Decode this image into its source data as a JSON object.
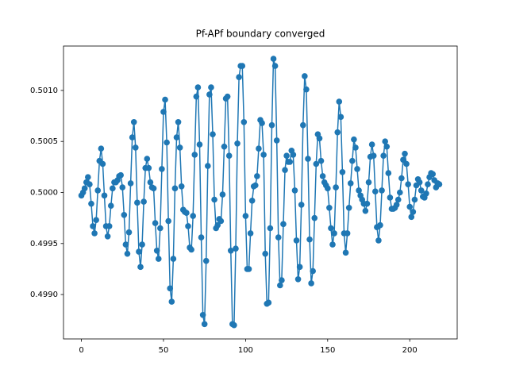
{
  "chart_data": {
    "type": "line",
    "title": "Pf-APf boundary converged",
    "x": [
      0,
      1,
      2,
      3,
      4,
      5,
      6,
      7,
      8,
      9,
      10,
      11,
      12,
      13,
      14,
      15,
      16,
      17,
      18,
      19,
      20,
      21,
      22,
      23,
      24,
      25,
      26,
      27,
      28,
      29,
      30,
      31,
      32,
      33,
      34,
      35,
      36,
      37,
      38,
      39,
      40,
      41,
      42,
      43,
      44,
      45,
      46,
      47,
      48,
      49,
      50,
      51,
      52,
      53,
      54,
      55,
      56,
      57,
      58,
      59,
      60,
      61,
      62,
      63,
      64,
      65,
      66,
      67,
      68,
      69,
      70,
      71,
      72,
      73,
      74,
      75,
      76,
      77,
      78,
      79,
      80,
      81,
      82,
      83,
      84,
      85,
      86,
      87,
      88,
      89,
      90,
      91,
      92,
      93,
      94,
      95,
      96,
      97,
      98,
      99,
      100,
      101,
      102,
      103,
      104,
      105,
      106,
      107,
      108,
      109,
      110,
      111,
      112,
      113,
      114,
      115,
      116,
      117,
      118,
      119,
      120,
      121,
      122,
      123,
      124,
      125,
      126,
      127,
      128,
      129,
      130,
      131,
      132,
      133,
      134,
      135,
      136,
      137,
      138,
      139,
      140,
      141,
      142,
      143,
      144,
      145,
      146,
      147,
      148,
      149,
      150,
      151,
      152,
      153,
      154,
      155,
      156,
      157,
      158,
      159,
      160,
      161,
      162,
      163,
      164,
      165,
      166,
      167,
      168,
      169,
      170,
      171,
      172,
      173,
      174,
      175,
      176,
      177,
      178,
      179,
      180,
      181,
      182,
      183,
      184,
      185,
      186,
      187,
      188,
      189,
      190,
      191,
      192,
      193,
      194,
      195,
      196,
      197,
      198,
      199,
      200,
      201,
      202,
      203,
      204,
      205,
      206,
      207,
      208,
      209,
      210,
      211,
      212,
      213,
      214,
      215,
      216,
      217,
      218
    ],
    "series": [
      {
        "color": "#1f77b4",
        "values": [
          0.49997,
          0.5,
          0.50004,
          0.5001,
          0.50015,
          0.50008,
          0.49989,
          0.49967,
          0.4996,
          0.49973,
          0.50002,
          0.50031,
          0.50043,
          0.50028,
          0.49997,
          0.49967,
          0.49957,
          0.49967,
          0.49987,
          0.50004,
          0.5001,
          0.5001,
          0.50012,
          0.50016,
          0.50017,
          0.50005,
          0.49978,
          0.49949,
          0.4994,
          0.49961,
          0.50009,
          0.50054,
          0.50069,
          0.50044,
          0.4999,
          0.49942,
          0.49927,
          0.49949,
          0.49991,
          0.50024,
          0.50033,
          0.50024,
          0.5001,
          0.50005,
          0.50004,
          0.4997,
          0.49943,
          0.49935,
          0.49965,
          0.50023,
          0.50079,
          0.50091,
          0.50049,
          0.49972,
          0.49906,
          0.49893,
          0.49935,
          0.50004,
          0.50054,
          0.50069,
          0.50044,
          0.50006,
          0.49983,
          0.49981,
          0.4998,
          0.49967,
          0.49946,
          0.49944,
          0.49977,
          0.50037,
          0.50094,
          0.50103,
          0.50047,
          0.49956,
          0.4988,
          0.49871,
          0.49933,
          0.50026,
          0.50096,
          0.50103,
          0.50057,
          0.49993,
          0.49965,
          0.49968,
          0.49974,
          0.49972,
          0.49998,
          0.50045,
          0.50092,
          0.50094,
          0.50036,
          0.49943,
          0.49871,
          0.4987,
          0.49945,
          0.50048,
          0.50113,
          0.50124,
          0.50124,
          0.50069,
          0.49977,
          0.49925,
          0.49925,
          0.4996,
          0.49992,
          0.50006,
          0.50007,
          0.50016,
          0.50043,
          0.50071,
          0.50068,
          0.50037,
          0.4994,
          0.49891,
          0.49892,
          0.49965,
          0.50066,
          0.50131,
          0.50124,
          0.50051,
          0.49956,
          0.49909,
          0.49914,
          0.49969,
          0.50022,
          0.50036,
          0.5003,
          0.5003,
          0.50041,
          0.50037,
          0.50002,
          0.49953,
          0.49915,
          0.49927,
          0.49988,
          0.50066,
          0.50114,
          0.50101,
          0.50033,
          0.49954,
          0.49911,
          0.49923,
          0.49975,
          0.50028,
          0.50057,
          0.50053,
          0.50031,
          0.50016,
          0.5001,
          0.50007,
          0.50004,
          0.49985,
          0.49965,
          0.49949,
          0.4996,
          0.50005,
          0.50059,
          0.50089,
          0.50074,
          0.5002,
          0.4996,
          0.49941,
          0.4996,
          0.49985,
          0.50009,
          0.50031,
          0.50052,
          0.50044,
          0.50023,
          0.50002,
          0.49997,
          0.49993,
          0.49989,
          0.49982,
          0.49989,
          0.5001,
          0.50035,
          0.50047,
          0.50036,
          0.50001,
          0.49966,
          0.49953,
          0.49968,
          0.50002,
          0.50036,
          0.5005,
          0.50045,
          0.50019,
          0.49995,
          0.49984,
          0.49984,
          0.49985,
          0.49988,
          0.49993,
          0.5,
          0.50014,
          0.50032,
          0.50038,
          0.50028,
          0.50008,
          0.49986,
          0.49976,
          0.49981,
          0.49993,
          0.50007,
          0.50013,
          0.5001,
          0.50002,
          0.49996,
          0.49995,
          0.49999,
          0.50008,
          0.50015,
          0.50019,
          0.50018,
          0.50012,
          0.50005,
          0.50009,
          0.50008
        ]
      }
    ],
    "xlim": [
      -10.9,
      228.9
    ],
    "xticks": [
      0,
      50,
      100,
      150,
      200
    ],
    "ylim": [
      0.498565,
      0.501435
    ],
    "yticks": [
      {
        "value": 0.499,
        "label": "0.4990"
      },
      0.4995,
      {
        "value": 0.5,
        "label": "0.5000"
      },
      0.5005,
      {
        "value": 0.501,
        "label": "0.5010"
      }
    ],
    "markers": true
  }
}
